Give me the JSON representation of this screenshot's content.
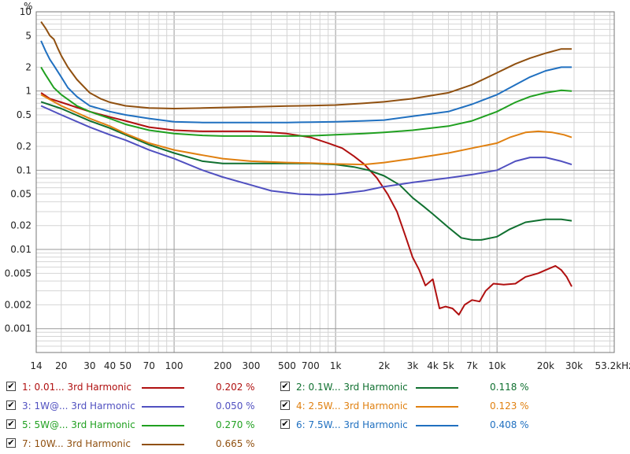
{
  "chart_data": {
    "type": "line",
    "xscale": "log",
    "yscale": "log",
    "xlim": [
      14,
      53200
    ],
    "ylim": [
      0.0005,
      10
    ],
    "grid": true,
    "y_unit": "%",
    "x_ticks": [
      {
        "v": 14,
        "label": "14"
      },
      {
        "v": 20,
        "label": "20"
      },
      {
        "v": 30,
        "label": "30"
      },
      {
        "v": 40,
        "label": "40"
      },
      {
        "v": 50,
        "label": "50"
      },
      {
        "v": 70,
        "label": "70"
      },
      {
        "v": 100,
        "label": "100"
      },
      {
        "v": 200,
        "label": "200"
      },
      {
        "v": 300,
        "label": "300"
      },
      {
        "v": 500,
        "label": "500"
      },
      {
        "v": 700,
        "label": "700"
      },
      {
        "v": 1000,
        "label": "1k"
      },
      {
        "v": 2000,
        "label": "2k"
      },
      {
        "v": 3000,
        "label": "3k"
      },
      {
        "v": 4000,
        "label": "4k"
      },
      {
        "v": 5000,
        "label": "5k"
      },
      {
        "v": 7000,
        "label": "7k"
      },
      {
        "v": 10000,
        "label": "10k"
      },
      {
        "v": 20000,
        "label": "20k"
      },
      {
        "v": 30000,
        "label": "30k"
      },
      {
        "v": 53200,
        "label": "53.2kHz"
      }
    ],
    "y_ticks": [
      {
        "v": 10,
        "label": "10"
      },
      {
        "v": 5,
        "label": "5"
      },
      {
        "v": 2,
        "label": "2"
      },
      {
        "v": 1,
        "label": "1"
      },
      {
        "v": 0.5,
        "label": "0.5"
      },
      {
        "v": 0.2,
        "label": "0.2"
      },
      {
        "v": 0.1,
        "label": "0.1"
      },
      {
        "v": 0.05,
        "label": "0.05"
      },
      {
        "v": 0.02,
        "label": "0.02"
      },
      {
        "v": 0.01,
        "label": "0.01"
      },
      {
        "v": 0.005,
        "label": "0.005"
      },
      {
        "v": 0.002,
        "label": "0.002"
      },
      {
        "v": 0.001,
        "label": "0.001"
      }
    ],
    "series": [
      {
        "name": "1: 0.01... 3rd Harmonic",
        "value": "0.202 %",
        "color": "#b01010",
        "points": [
          [
            15,
            0.95
          ],
          [
            17,
            0.8
          ],
          [
            20,
            0.72
          ],
          [
            25,
            0.62
          ],
          [
            30,
            0.55
          ],
          [
            40,
            0.47
          ],
          [
            50,
            0.42
          ],
          [
            60,
            0.38
          ],
          [
            70,
            0.35
          ],
          [
            100,
            0.32
          ],
          [
            150,
            0.31
          ],
          [
            200,
            0.31
          ],
          [
            300,
            0.31
          ],
          [
            400,
            0.3
          ],
          [
            500,
            0.29
          ],
          [
            700,
            0.26
          ],
          [
            900,
            0.22
          ],
          [
            1100,
            0.19
          ],
          [
            1300,
            0.15
          ],
          [
            1500,
            0.12
          ],
          [
            1800,
            0.08
          ],
          [
            2100,
            0.05
          ],
          [
            2400,
            0.03
          ],
          [
            2700,
            0.015
          ],
          [
            3000,
            0.008
          ],
          [
            3300,
            0.0055
          ],
          [
            3600,
            0.0035
          ],
          [
            4000,
            0.0042
          ],
          [
            4400,
            0.0018
          ],
          [
            4800,
            0.0019
          ],
          [
            5300,
            0.0018
          ],
          [
            5800,
            0.0015
          ],
          [
            6300,
            0.002
          ],
          [
            7000,
            0.0023
          ],
          [
            7800,
            0.0022
          ],
          [
            8500,
            0.003
          ],
          [
            9500,
            0.0037
          ],
          [
            11000,
            0.0036
          ],
          [
            13000,
            0.0037
          ],
          [
            15000,
            0.0045
          ],
          [
            18000,
            0.005
          ],
          [
            20000,
            0.0055
          ],
          [
            23000,
            0.0062
          ],
          [
            25000,
            0.0055
          ],
          [
            27000,
            0.0045
          ],
          [
            29000,
            0.0034
          ]
        ]
      },
      {
        "name": "2: 0.1W... 3rd Harmonic",
        "value": "0.118 %",
        "color": "#107030",
        "points": [
          [
            15,
            0.73
          ],
          [
            20,
            0.6
          ],
          [
            30,
            0.42
          ],
          [
            40,
            0.34
          ],
          [
            50,
            0.28
          ],
          [
            70,
            0.21
          ],
          [
            100,
            0.165
          ],
          [
            150,
            0.13
          ],
          [
            200,
            0.122
          ],
          [
            300,
            0.122
          ],
          [
            500,
            0.122
          ],
          [
            700,
            0.122
          ],
          [
            1000,
            0.118
          ],
          [
            1300,
            0.11
          ],
          [
            1600,
            0.1
          ],
          [
            2000,
            0.085
          ],
          [
            2500,
            0.065
          ],
          [
            3000,
            0.045
          ],
          [
            3500,
            0.035
          ],
          [
            4000,
            0.028
          ],
          [
            5000,
            0.019
          ],
          [
            6000,
            0.014
          ],
          [
            7000,
            0.0132
          ],
          [
            8000,
            0.0132
          ],
          [
            10000,
            0.0145
          ],
          [
            12000,
            0.018
          ],
          [
            15000,
            0.022
          ],
          [
            20000,
            0.024
          ],
          [
            25000,
            0.024
          ],
          [
            29000,
            0.023
          ]
        ]
      },
      {
        "name": "3: 1W@... 3rd Harmonic",
        "value": "0.050 %",
        "color": "#5050c0",
        "points": [
          [
            15,
            0.65
          ],
          [
            20,
            0.5
          ],
          [
            30,
            0.35
          ],
          [
            40,
            0.28
          ],
          [
            50,
            0.24
          ],
          [
            70,
            0.18
          ],
          [
            100,
            0.14
          ],
          [
            150,
            0.1
          ],
          [
            200,
            0.082
          ],
          [
            300,
            0.065
          ],
          [
            400,
            0.055
          ],
          [
            500,
            0.052
          ],
          [
            600,
            0.05
          ],
          [
            800,
            0.049
          ],
          [
            1000,
            0.05
          ],
          [
            1500,
            0.055
          ],
          [
            2000,
            0.062
          ],
          [
            3000,
            0.07
          ],
          [
            5000,
            0.08
          ],
          [
            7000,
            0.088
          ],
          [
            10000,
            0.1
          ],
          [
            13000,
            0.13
          ],
          [
            16000,
            0.145
          ],
          [
            20000,
            0.145
          ],
          [
            25000,
            0.13
          ],
          [
            29000,
            0.118
          ]
        ]
      },
      {
        "name": "4: 2.5W... 3rd Harmonic",
        "value": "0.123 %",
        "color": "#e08010",
        "points": [
          [
            15,
            0.9
          ],
          [
            20,
            0.65
          ],
          [
            30,
            0.45
          ],
          [
            40,
            0.36
          ],
          [
            50,
            0.29
          ],
          [
            70,
            0.22
          ],
          [
            100,
            0.18
          ],
          [
            150,
            0.155
          ],
          [
            200,
            0.14
          ],
          [
            300,
            0.13
          ],
          [
            500,
            0.125
          ],
          [
            700,
            0.123
          ],
          [
            1000,
            0.12
          ],
          [
            1500,
            0.118
          ],
          [
            2000,
            0.125
          ],
          [
            3000,
            0.14
          ],
          [
            5000,
            0.165
          ],
          [
            7000,
            0.19
          ],
          [
            10000,
            0.22
          ],
          [
            12000,
            0.26
          ],
          [
            15000,
            0.3
          ],
          [
            18000,
            0.31
          ],
          [
            22000,
            0.3
          ],
          [
            26000,
            0.28
          ],
          [
            29000,
            0.26
          ]
        ]
      },
      {
        "name": "5: 5W@... 3rd Harmonic",
        "value": "0.270 %",
        "color": "#20a020",
        "points": [
          [
            15,
            2.0
          ],
          [
            16,
            1.6
          ],
          [
            18,
            1.1
          ],
          [
            20,
            0.9
          ],
          [
            25,
            0.65
          ],
          [
            30,
            0.55
          ],
          [
            40,
            0.45
          ],
          [
            50,
            0.38
          ],
          [
            70,
            0.32
          ],
          [
            100,
            0.29
          ],
          [
            150,
            0.275
          ],
          [
            200,
            0.27
          ],
          [
            300,
            0.27
          ],
          [
            500,
            0.27
          ],
          [
            700,
            0.272
          ],
          [
            1000,
            0.28
          ],
          [
            1500,
            0.29
          ],
          [
            2000,
            0.3
          ],
          [
            3000,
            0.32
          ],
          [
            5000,
            0.36
          ],
          [
            7000,
            0.42
          ],
          [
            10000,
            0.55
          ],
          [
            13000,
            0.72
          ],
          [
            16000,
            0.85
          ],
          [
            20000,
            0.95
          ],
          [
            25000,
            1.02
          ],
          [
            29000,
            1.0
          ]
        ]
      },
      {
        "name": "6: 7.5W... 3rd Harmonic",
        "value": "0.408 %",
        "color": "#2070c0",
        "points": [
          [
            15,
            4.3
          ],
          [
            16,
            3.2
          ],
          [
            17,
            2.5
          ],
          [
            18,
            2.1
          ],
          [
            20,
            1.5
          ],
          [
            22,
            1.1
          ],
          [
            25,
            0.85
          ],
          [
            30,
            0.65
          ],
          [
            40,
            0.55
          ],
          [
            50,
            0.5
          ],
          [
            70,
            0.45
          ],
          [
            100,
            0.41
          ],
          [
            150,
            0.4
          ],
          [
            200,
            0.4
          ],
          [
            300,
            0.4
          ],
          [
            500,
            0.4
          ],
          [
            700,
            0.405
          ],
          [
            1000,
            0.41
          ],
          [
            1500,
            0.42
          ],
          [
            2000,
            0.43
          ],
          [
            3000,
            0.48
          ],
          [
            5000,
            0.55
          ],
          [
            7000,
            0.68
          ],
          [
            10000,
            0.9
          ],
          [
            13000,
            1.2
          ],
          [
            16000,
            1.5
          ],
          [
            20000,
            1.8
          ],
          [
            25000,
            2.0
          ],
          [
            29000,
            2.0
          ]
        ]
      },
      {
        "name": "7: 10W... 3rd Harmonic",
        "value": "0.665 %",
        "color": "#905010",
        "points": [
          [
            15,
            7.5
          ],
          [
            16,
            6.2
          ],
          [
            17,
            5.0
          ],
          [
            18,
            4.5
          ],
          [
            19,
            3.5
          ],
          [
            20,
            2.8
          ],
          [
            22,
            2.0
          ],
          [
            25,
            1.4
          ],
          [
            30,
            0.95
          ],
          [
            35,
            0.8
          ],
          [
            40,
            0.72
          ],
          [
            50,
            0.65
          ],
          [
            70,
            0.61
          ],
          [
            100,
            0.6
          ],
          [
            150,
            0.61
          ],
          [
            200,
            0.62
          ],
          [
            300,
            0.63
          ],
          [
            500,
            0.645
          ],
          [
            700,
            0.655
          ],
          [
            1000,
            0.665
          ],
          [
            1500,
            0.7
          ],
          [
            2000,
            0.73
          ],
          [
            3000,
            0.8
          ],
          [
            5000,
            0.95
          ],
          [
            7000,
            1.2
          ],
          [
            10000,
            1.7
          ],
          [
            13000,
            2.2
          ],
          [
            16000,
            2.6
          ],
          [
            20000,
            3.0
          ],
          [
            25000,
            3.4
          ],
          [
            29000,
            3.4
          ]
        ]
      }
    ]
  },
  "legend": {
    "check_mark": "✔",
    "items": [
      {
        "name": "1: 0.01... 3rd Harmonic",
        "value": "0.202 %",
        "color": "#b01010"
      },
      {
        "name": "2: 0.1W... 3rd Harmonic",
        "value": "0.118 %",
        "color": "#107030"
      },
      {
        "name": "3: 1W@... 3rd Harmonic",
        "value": "0.050 %",
        "color": "#5050c0"
      },
      {
        "name": "4: 2.5W... 3rd Harmonic",
        "value": "0.123 %",
        "color": "#e08010"
      },
      {
        "name": "5: 5W@... 3rd Harmonic",
        "value": "0.270 %",
        "color": "#20a020"
      },
      {
        "name": "6: 7.5W... 3rd Harmonic",
        "value": "0.408 %",
        "color": "#2070c0"
      },
      {
        "name": "7: 10W... 3rd Harmonic",
        "value": "0.665 %",
        "color": "#905010"
      }
    ]
  }
}
